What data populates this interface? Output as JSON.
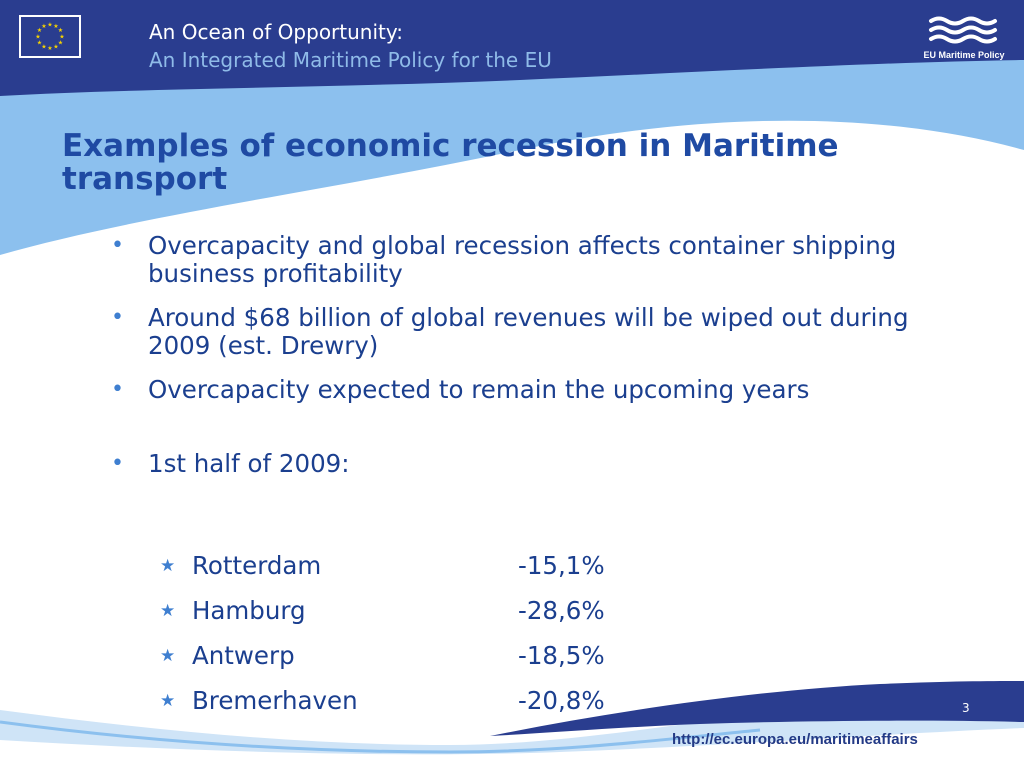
{
  "header": {
    "line1": "An Ocean of Opportunity:",
    "line2": "An Integrated Maritime Policy for the EU",
    "logo_text": "EU Maritime Policy"
  },
  "slide": {
    "title": "Examples of economic recession in Maritime transport",
    "bullets": [
      "Overcapacity and global recession affects container shipping business profitability",
      "Around $68 billion of global revenues will be wiped out during 2009 (est. Drewry)",
      "Overcapacity expected to remain the upcoming years",
      "1st half of 2009:"
    ],
    "ports": [
      {
        "name": "Rotterdam",
        "value": "-15,1%"
      },
      {
        "name": "Hamburg",
        "value": "-28,6%"
      },
      {
        "name": "Antwerp",
        "value": "-18,5%"
      },
      {
        "name": "Bremerhaven",
        "value": "-20,8%"
      }
    ]
  },
  "footer": {
    "page_number": "3",
    "url": "http://ec.europa.eu/maritimeaffairs"
  },
  "colors": {
    "header_navy": "#2a3d8f",
    "wave_light_blue": "#8cc0ee",
    "title_blue": "#1f4aa3",
    "body_text": "#1b3f8f",
    "bullet_accent": "#3f7fd0"
  },
  "icons": {
    "flag": "eu-flag-icon",
    "logo": "eu-maritime-policy-waves-icon",
    "bullet": "bullet-dot-icon",
    "sub_bullet": "star-icon"
  }
}
